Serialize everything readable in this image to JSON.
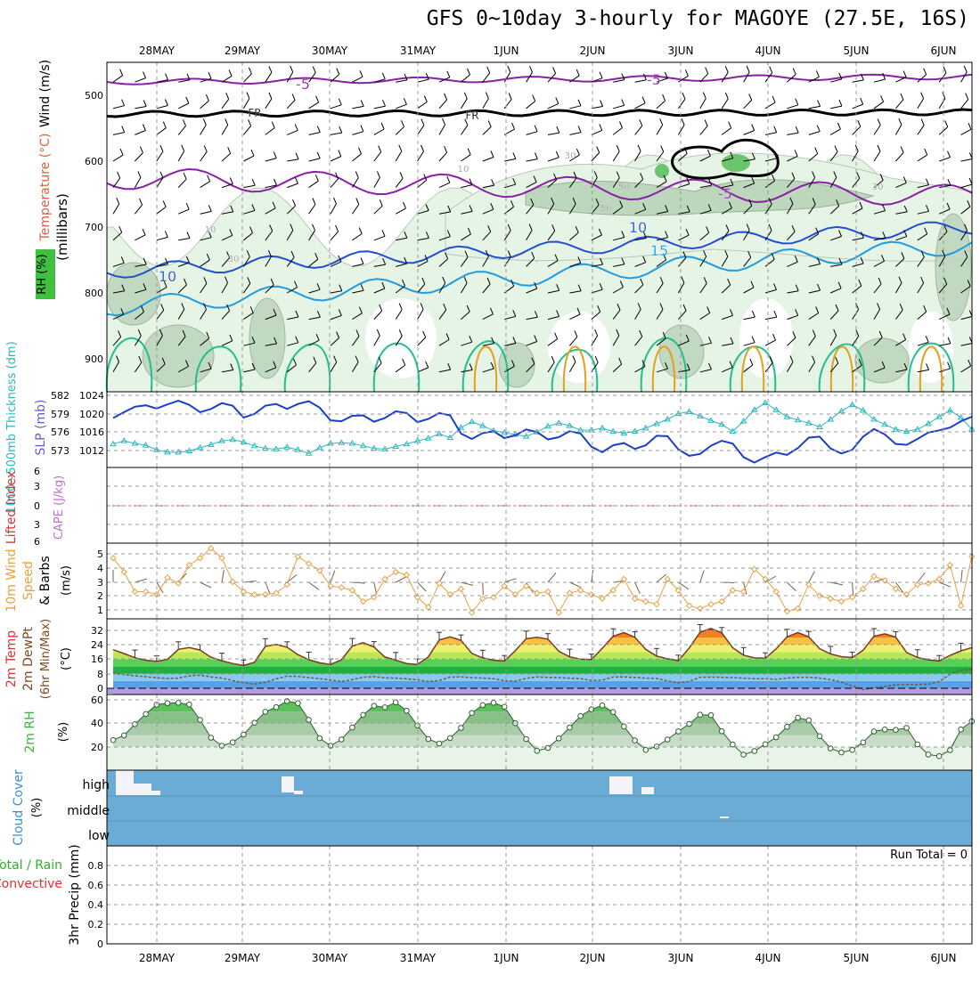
{
  "title": "GFS 0~10day 3-hourly for MAGOYE (27.5E, 16S)",
  "dates": [
    "28MAY",
    "29MAY",
    "30MAY",
    "31MAY",
    "1JUN",
    "2JUN",
    "3JUN",
    "4JUN",
    "5JUN",
    "6JUN"
  ],
  "colors": {
    "rh_fill": "#e6f4e6",
    "rh_mid": "#bcd7bc",
    "rh_dark": "#92b292",
    "rh_green": "#6cc46c",
    "temp_neg5": "#8b1fa6",
    "temp_fr": "#000000",
    "temp_10": "#1f4fd0",
    "temp_15": "#1f9be0",
    "temp_20": "#1fbf8f",
    "temp_25": "#e0a020",
    "slp": "#1a3fc8",
    "thickness": "#2ab7c0",
    "wind_speed": "#e8a040",
    "barbs": "#7a6048",
    "rh2m": "#3cb43c",
    "cloud": "#6aacd6",
    "precip_label": "#30b030",
    "convective": "#e03030",
    "li": "#e03030",
    "cape": "#c070d0"
  },
  "panels": {
    "upper": {
      "ylabel_axis": "(millibars)",
      "legend": {
        "wind": "Wind (m/s)",
        "temp": "Temperature (°C)",
        "rh": "RH (%)"
      },
      "contour_labels": [
        "-5",
        "-5",
        "FR",
        "FR",
        "-5",
        "10",
        "10",
        "15",
        "10",
        "30",
        "30",
        "50",
        "50",
        "10",
        "30"
      ]
    },
    "slp": {
      "ylabel_thk": "1000~500mb Thickness (dm)",
      "ylabel_slp": "SLP (mb)"
    },
    "cape": {
      "ylabel_li": "Lifted Index",
      "ylabel_cape": "CAPE (J/kg)"
    },
    "wind10": {
      "ylabel_1": "10m Wind",
      "ylabel_2": "Speed",
      "ylabel_3": "& Barbs",
      "ylabel_4": "(m/s)"
    },
    "temp2m": {
      "ylabel_1": "2m Temp",
      "ylabel_2": "2m DewPt",
      "ylabel_3": "(6hr Min/Max)",
      "ylabel_4": "(°C)"
    },
    "rh2m": {
      "ylabel_1": "2m RH",
      "ylabel_2": "(%)"
    },
    "cloud": {
      "ylabel_1": "Cloud Cover",
      "ylabel_2": "(%)",
      "levels": [
        "high",
        "middle",
        "low"
      ]
    },
    "precip": {
      "ylabel_1": "Total / Rain",
      "ylabel_2": "Convective",
      "ylabel_3": "3hr Precip (mm)",
      "run_total": "Run Total = 0"
    }
  },
  "chart_data": [
    {
      "type": "heatmap",
      "panel": "upper-air cross section",
      "y_axis": {
        "label": "(millibars)",
        "ticks": [
          500,
          600,
          700,
          800,
          900
        ],
        "range": [
          450,
          950
        ],
        "inverted": true
      },
      "x_axis": {
        "ticks": [
          "28MAY",
          "29MAY",
          "30MAY",
          "31MAY",
          "1JUN",
          "2JUN",
          "3JUN",
          "4JUN",
          "5JUN",
          "6JUN"
        ]
      },
      "isotherms": [
        {
          "label": "-5",
          "approx_level_mb": [
            480,
            640
          ]
        },
        {
          "label": "FR",
          "approx_level_mb": 525
        },
        {
          "label": "10",
          "approx_level_mb": [
            790,
            710
          ]
        },
        {
          "label": "15",
          "approx_level_mb": [
            840,
            740
          ]
        }
      ],
      "rh_contours": [
        10,
        30,
        50
      ]
    },
    {
      "type": "line",
      "panel": "SLP and thickness",
      "x": [
        0,
        1,
        2,
        3,
        4,
        5,
        6,
        7,
        8,
        9,
        10,
        11,
        12,
        13,
        14,
        15,
        16,
        17,
        18,
        19,
        20,
        21,
        22,
        23,
        24,
        25,
        26,
        27,
        28,
        29,
        30,
        31,
        32,
        33,
        34,
        35,
        36,
        37,
        38,
        39,
        40,
        41,
        42,
        43,
        44,
        45,
        46,
        47,
        48,
        49,
        50,
        51,
        52,
        53,
        54,
        55,
        56,
        57,
        58,
        59,
        60,
        61,
        62,
        63,
        64,
        65,
        66,
        67,
        68,
        69,
        70,
        71,
        72,
        73,
        74,
        75,
        76,
        77,
        78,
        79
      ],
      "series": [
        {
          "name": "SLP",
          "axis": "right",
          "values": [
            1019.5,
            1020.8,
            1022.0,
            1022.3,
            1021.6,
            1022.5,
            1023.3,
            1022.4,
            1020.8,
            1021.5,
            1022.8,
            1022.2,
            1019.6,
            1020.4,
            1022.2,
            1022.6,
            1021.5,
            1022.6,
            1023.2,
            1021.8,
            1019.0,
            1018.8,
            1020.0,
            1020.1,
            1018.7,
            1019.5,
            1021.0,
            1020.6,
            1018.6,
            1019.3,
            1020.6,
            1020.1,
            1016.1,
            1014.9,
            1016.2,
            1016.6,
            1015.1,
            1015.7,
            1017.0,
            1016.4,
            1014.8,
            1015.3,
            1016.6,
            1016.1,
            1013.2,
            1012.0,
            1013.5,
            1014.0,
            1012.7,
            1013.5,
            1015.6,
            1015.5,
            1012.6,
            1011.2,
            1011.6,
            1013.4,
            1014.5,
            1013.9,
            1010.9,
            1009.7,
            1010.9,
            1011.9,
            1011.4,
            1012.9,
            1015.2,
            1015.4,
            1012.8,
            1011.7,
            1012.5,
            1015.4,
            1017.1,
            1015.9,
            1013.8,
            1013.6,
            1014.9,
            1016.3,
            1016.8,
            1017.4,
            1018.8,
            1019.8
          ]
        },
        {
          "name": "Thickness",
          "axis": "left",
          "values": [
            574.3,
            574.8,
            574.4,
            574.1,
            573.4,
            573.0,
            573.0,
            573.2,
            573.7,
            574.2,
            574.8,
            575.0,
            574.6,
            574.0,
            573.6,
            573.5,
            573.8,
            573.4,
            572.8,
            573.7,
            574.4,
            574.5,
            574.4,
            574.0,
            573.6,
            573.5,
            573.9,
            574.3,
            574.8,
            575.2,
            575.9,
            575.3,
            576.9,
            577.8,
            577.2,
            576.4,
            576.1,
            575.8,
            575.5,
            576.2,
            577.1,
            577.6,
            577.2,
            576.5,
            576.5,
            576.8,
            576.3,
            576.0,
            576.3,
            576.8,
            577.5,
            578.2,
            579.1,
            579.4,
            578.7,
            578.0,
            577.4,
            576.3,
            577.9,
            579.7,
            580.8,
            579.7,
            578.6,
            578.1,
            577.6,
            577.0,
            578.2,
            579.5,
            580.5,
            579.6,
            578.2,
            577.4,
            576.6,
            576.3,
            576.6,
            577.5,
            578.6,
            579.6,
            578.5,
            576.6
          ]
        }
      ],
      "y_left": {
        "label": "1000~500mb Thickness (dm)",
        "ticks": [
          573,
          576,
          579,
          582
        ]
      },
      "y_right": {
        "label": "SLP (mb)",
        "ticks": [
          1012,
          1016,
          1020,
          1024
        ]
      }
    },
    {
      "type": "line",
      "panel": "Lifted Index / CAPE",
      "y_ticks": [
        -6,
        -3,
        0,
        3,
        6
      ],
      "y_labels": [
        "6",
        "3",
        "0",
        "3",
        "6"
      ],
      "series": [
        {
          "name": "Lifted Index",
          "values": [
            0
          ]
        }
      ]
    },
    {
      "type": "line",
      "panel": "10m wind speed",
      "y_ticks": [
        1,
        2,
        3,
        4,
        5
      ],
      "x": [
        0,
        1,
        2,
        3,
        4,
        5,
        6,
        7,
        8,
        9,
        10,
        11,
        12,
        13,
        14,
        15,
        16,
        17,
        18,
        19,
        20,
        21,
        22,
        23,
        24,
        25,
        26,
        27,
        28,
        29,
        30,
        31,
        32,
        33,
        34,
        35,
        36,
        37,
        38,
        39,
        40,
        41,
        42,
        43,
        44,
        45,
        46,
        47,
        48,
        49,
        50,
        51,
        52,
        53,
        54,
        55,
        56,
        57,
        58,
        59,
        60,
        61,
        62,
        63,
        64,
        65,
        66,
        67,
        68,
        69,
        70,
        71,
        72,
        73,
        74,
        75,
        76,
        77,
        78,
        79
      ],
      "series": [
        {
          "name": "10m Wind Speed",
          "values": [
            4.7,
            3.7,
            2.3,
            2.3,
            2.1,
            3.3,
            2.9,
            4.2,
            4.7,
            5.4,
            4.7,
            3.0,
            2.3,
            2.1,
            2.1,
            2.2,
            2.8,
            4.8,
            4.3,
            3.8,
            2.7,
            2.6,
            2.4,
            1.6,
            1.9,
            3.2,
            3.7,
            3.5,
            1.9,
            1.2,
            2.9,
            2.1,
            2.5,
            0.8,
            1.8,
            1.9,
            2.7,
            2.1,
            2.7,
            2.2,
            2.3,
            0.8,
            2.2,
            2.4,
            2.1,
            1.8,
            2.4,
            3.2,
            1.8,
            1.6,
            1.4,
            3.2,
            2.4,
            1.3,
            1.1,
            1.4,
            1.6,
            2.4,
            2.3,
            3.9,
            3.2,
            2.3,
            0.9,
            1.1,
            2.8,
            2.0,
            1.8,
            1.6,
            1.9,
            2.5,
            3.4,
            3.1,
            2.5,
            2.1,
            2.8,
            2.9,
            3.2,
            4.2,
            1.3,
            4.8
          ]
        }
      ]
    },
    {
      "type": "area",
      "panel": "2m temperature / dew point",
      "y_ticks": [
        0,
        8,
        16,
        24,
        32
      ],
      "x": [
        0,
        1,
        2,
        3,
        4,
        5,
        6,
        7,
        8,
        9,
        10,
        11,
        12,
        13,
        14,
        15,
        16,
        17,
        18,
        19,
        20,
        21,
        22,
        23,
        24,
        25,
        26,
        27,
        28,
        29,
        30,
        31,
        32,
        33,
        34,
        35,
        36,
        37,
        38,
        39,
        40,
        41,
        42,
        43,
        44,
        45,
        46,
        47,
        48,
        49,
        50,
        51,
        52,
        53,
        54,
        55,
        56,
        57,
        58,
        59,
        60,
        61,
        62,
        63,
        64,
        65,
        66,
        67,
        68,
        69,
        70,
        71,
        72,
        73,
        74,
        75,
        76,
        77,
        78,
        79
      ],
      "series": [
        {
          "name": "2m Temp",
          "values": [
            21.3,
            19.2,
            16.9,
            15.5,
            14.9,
            16.0,
            21.5,
            22.5,
            21.1,
            17.2,
            15.2,
            13.7,
            12.6,
            14.4,
            23.2,
            24.2,
            22.7,
            18.6,
            15.8,
            14.1,
            13.2,
            15.7,
            23.3,
            25.2,
            22.8,
            17.3,
            15.6,
            13.7,
            13.2,
            17.4,
            26.7,
            28.4,
            26.5,
            19.3,
            16.8,
            15.5,
            15.1,
            20.8,
            27.4,
            28.2,
            27.2,
            20.5,
            17.4,
            16.1,
            15.9,
            22.1,
            28.7,
            30.8,
            28.2,
            21.5,
            17.8,
            16.3,
            15.3,
            22.2,
            31.0,
            33.1,
            30.6,
            22.4,
            18.3,
            16.8,
            16.6,
            21.8,
            28.4,
            30.8,
            28.4,
            21.9,
            19.0,
            17.5,
            17.0,
            21.0,
            28.8,
            30.1,
            28.3,
            19.8,
            17.1,
            15.7,
            15.1,
            18.2,
            20.7,
            22.5
          ]
        },
        {
          "name": "2m DewPt",
          "values": [
            8.4,
            7.6,
            6.9,
            6.4,
            5.8,
            5.4,
            5.6,
            6.9,
            7.2,
            6.3,
            5.6,
            4.3,
            3.0,
            2.3,
            3.3,
            5.2,
            6.7,
            6.5,
            5.9,
            5.3,
            4.6,
            3.7,
            4.8,
            6.1,
            6.4,
            5.8,
            5.6,
            5.2,
            4.7,
            3.7,
            4.3,
            6.2,
            6.3,
            5.9,
            5.6,
            5.3,
            4.2,
            3.9,
            5.5,
            6.3,
            6.0,
            5.9,
            5.6,
            5.3,
            4.3,
            4.5,
            6.3,
            6.3,
            6.0,
            5.6,
            5.4,
            4.1,
            3.0,
            3.8,
            6.1,
            6.2,
            6.1,
            5.9,
            5.6,
            5.3,
            5.3,
            4.9,
            5.6,
            6.1,
            6.1,
            5.6,
            4.8,
            3.4,
            1.3,
            -0.7,
            0.2,
            1.0,
            1.9,
            2.1,
            2.0,
            2.3,
            3.7,
            7.7,
            10.1,
            10.4
          ]
        }
      ]
    },
    {
      "type": "area",
      "panel": "2m RH",
      "y_ticks": [
        20,
        40,
        60
      ],
      "x": [
        0,
        1,
        2,
        3,
        4,
        5,
        6,
        7,
        8,
        9,
        10,
        11,
        12,
        13,
        14,
        15,
        16,
        17,
        18,
        19,
        20,
        21,
        22,
        23,
        24,
        25,
        26,
        27,
        28,
        29,
        30,
        31,
        32,
        33,
        34,
        35,
        36,
        37,
        38,
        39,
        40,
        41,
        42,
        43,
        44,
        45,
        46,
        47,
        48,
        49,
        50,
        51,
        52,
        53,
        54,
        55,
        56,
        57,
        58,
        59,
        60,
        61,
        62,
        63,
        64,
        65,
        66,
        67,
        68,
        69,
        70,
        71,
        72,
        73,
        74,
        75,
        76,
        77,
        78,
        79
      ],
      "series": [
        {
          "name": "2m RH",
          "values": [
            25.7,
            29.7,
            39.3,
            47.9,
            55.9,
            57.1,
            57.5,
            56.0,
            42.9,
            27.7,
            20.8,
            23.8,
            30.4,
            40.5,
            49.8,
            53.8,
            58.9,
            57.2,
            43.0,
            27.3,
            20.9,
            26.2,
            36.4,
            47.2,
            54.9,
            53.6,
            57.9,
            50.7,
            38.1,
            26.6,
            22.8,
            27.4,
            36.1,
            48.8,
            55.5,
            57.5,
            54.1,
            40.1,
            26.6,
            16.5,
            19.0,
            27.1,
            36.4,
            46.2,
            51.9,
            55.3,
            49.6,
            37.3,
            25.4,
            17.3,
            20.2,
            26.2,
            33.1,
            39.5,
            47.3,
            46.9,
            33.3,
            21.9,
            13.2,
            16.3,
            22.2,
            28.1,
            37.0,
            44.8,
            42.6,
            29.0,
            18.6,
            15.1,
            17.3,
            23.7,
            33.1,
            34.7,
            34.4,
            36.1,
            22.0,
            13.4,
            12.0,
            17.1,
            34.8,
            41.7
          ]
        }
      ]
    },
    {
      "type": "bar",
      "panel": "cloud cover",
      "categories": [
        "high",
        "middle",
        "low"
      ],
      "series": [
        {
          "name": "Cloud Cover",
          "values": [
            0,
            0,
            0
          ]
        }
      ]
    },
    {
      "type": "bar",
      "panel": "3hr precipitation",
      "y_ticks": [
        0,
        0.2,
        0.4,
        0.6,
        0.8
      ],
      "series": [
        {
          "name": "3hr Precip",
          "values": [
            0
          ]
        }
      ],
      "annotation": "Run Total = 0"
    }
  ]
}
